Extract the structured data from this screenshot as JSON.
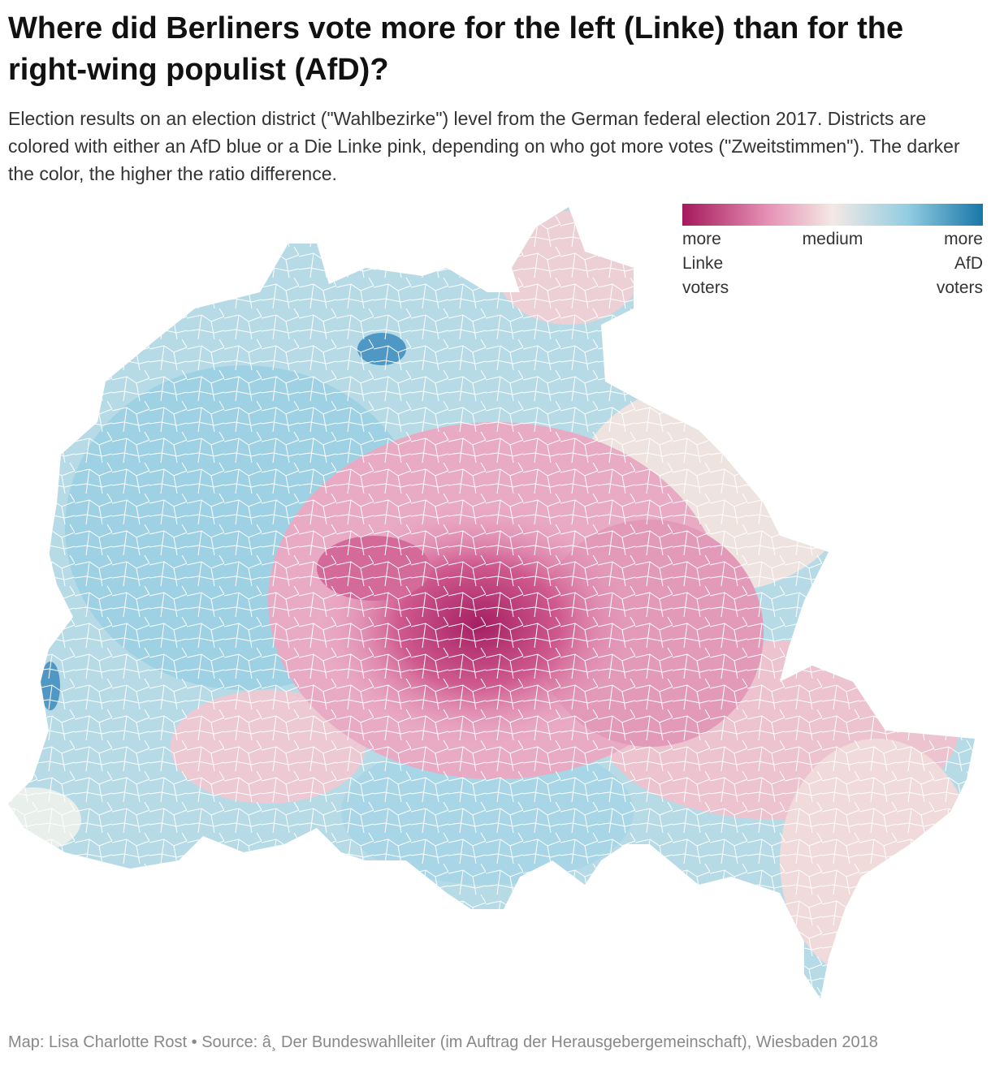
{
  "header": {
    "title": "Where did Berliners vote more for the left (Linke) than for the right-wing populist (AfD)?",
    "subtitle": "Election results on an election district (\"Wahlbezirke\") level from the German federal election 2017. Districts are colored with either an AfD blue or a Die Linke pink, depending on who got more votes (\"Zweitstimmen\"). The darker the color, the higher the ratio difference."
  },
  "legend": {
    "labels": [
      "more Linke voters",
      "medium",
      "more AfD voters"
    ]
  },
  "footer": {
    "text": "Map: Lisa Charlotte Rost • Source: â¸ Der Bundeswahlleiter (im Auftrag der Herausgebergemeinschaft), Wiesbaden 2018"
  }
}
